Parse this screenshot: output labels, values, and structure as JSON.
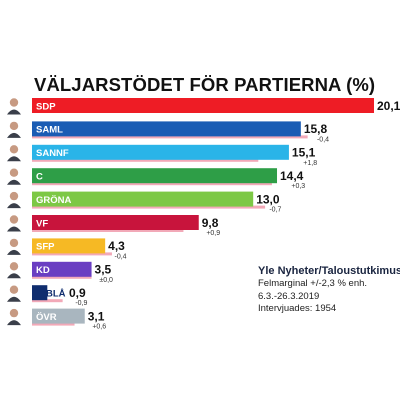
{
  "title": "VÄLJARSTÖDET FÖR PARTIERNA (%)",
  "source": {
    "name": "Yle Nyheter/Taloustutkimus",
    "margin": "Felmarginal +/-2,3 % enh.",
    "period": "6.3.-26.3.2019",
    "interviewed": "Intervjuades: 1954"
  },
  "colors": {
    "SDP": "#ee1c25",
    "SAML": "#1a5cb4",
    "SANNF": "#2ab4e8",
    "C": "#2e9e47",
    "GRÖNA": "#7dc845",
    "VF": "#c8143c",
    "SFP": "#f6b924",
    "KD": "#6a3ec2",
    "BLÅ": "#0f2d6e",
    "ÖVR": "#a9b6bf",
    "previous_bar": "#f2a9b8"
  },
  "chart_data": {
    "type": "bar",
    "orientation": "horizontal",
    "title": "VÄLJARSTÖDET FÖR PARTIERNA (%)",
    "categories": [
      "SDP",
      "SAML",
      "SANNF",
      "C",
      "GRÖNA",
      "VF",
      "SFP",
      "KD",
      "BLÅ",
      "ÖVR"
    ],
    "values": [
      20.1,
      15.8,
      15.1,
      14.4,
      13.0,
      9.8,
      4.3,
      3.5,
      0.9,
      3.1
    ],
    "value_labels": [
      "20,1",
      "15,8",
      "15,1",
      "14,4",
      "13,0",
      "9,8",
      "4,3",
      "3,5",
      "0,9",
      "3,1"
    ],
    "changes": [
      null,
      -0.4,
      1.8,
      0.3,
      -0.7,
      0.9,
      -0.4,
      0.0,
      -0.9,
      0.6
    ],
    "change_labels": [
      "",
      "-0,4",
      "+1,8",
      "+0,3",
      "-0,7",
      "+0,9",
      "-0,4",
      "±0,0",
      "-0,9",
      "+0,6"
    ],
    "xlim": [
      0,
      20.1
    ],
    "grid": false,
    "legend": "none"
  }
}
